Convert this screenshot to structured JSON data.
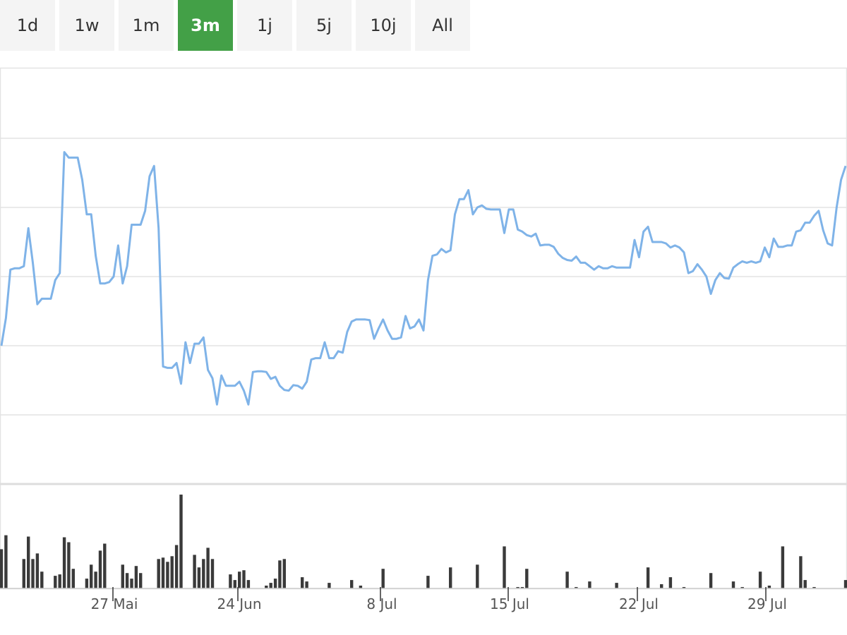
{
  "range_selector": {
    "buttons": [
      {
        "label": "1d",
        "active": false
      },
      {
        "label": "1w",
        "active": false
      },
      {
        "label": "1m",
        "active": false
      },
      {
        "label": "3m",
        "active": true
      },
      {
        "label": "1j",
        "active": false
      },
      {
        "label": "5j",
        "active": false
      },
      {
        "label": "10j",
        "active": false
      },
      {
        "label": "All",
        "active": false
      }
    ]
  },
  "colors": {
    "price_line": "#7fb3e8",
    "volume_bar": "#3a3a3a",
    "active_button": "#43a047",
    "gridline": "#e3e3e3"
  },
  "chart_data": [
    {
      "type": "line",
      "x_ticks": [
        "27 Mai",
        "24 Jun",
        "8 Jul",
        "15 Jul",
        "22 Jul",
        "29 Jul"
      ],
      "gridlines": true,
      "ylim": [
        0,
        6
      ],
      "y": [
        2.0,
        2.4,
        3.1,
        3.12,
        3.12,
        3.15,
        3.7,
        3.2,
        2.6,
        2.68,
        2.68,
        2.68,
        2.95,
        3.05,
        4.8,
        4.72,
        4.72,
        4.72,
        4.4,
        3.9,
        3.9,
        3.3,
        2.9,
        2.9,
        2.92,
        3.0,
        3.45,
        2.9,
        3.15,
        3.75,
        3.75,
        3.75,
        3.95,
        4.45,
        4.6,
        3.7,
        1.7,
        1.68,
        1.68,
        1.75,
        1.45,
        2.05,
        1.75,
        2.03,
        2.03,
        2.12,
        1.65,
        1.53,
        1.15,
        1.57,
        1.42,
        1.42,
        1.42,
        1.48,
        1.35,
        1.15,
        1.62,
        1.63,
        1.63,
        1.62,
        1.52,
        1.55,
        1.42,
        1.36,
        1.35,
        1.43,
        1.42,
        1.38,
        1.48,
        1.8,
        1.82,
        1.82,
        2.05,
        1.82,
        1.82,
        1.92,
        1.9,
        2.2,
        2.35,
        2.38,
        2.38,
        2.38,
        2.37,
        2.1,
        2.25,
        2.38,
        2.22,
        2.1,
        2.1,
        2.12,
        2.43,
        2.25,
        2.28,
        2.38,
        2.22,
        2.95,
        3.3,
        3.32,
        3.4,
        3.35,
        3.38,
        3.9,
        4.12,
        4.12,
        4.25,
        3.9,
        4.0,
        4.03,
        3.98,
        3.97,
        3.97,
        3.97,
        3.63,
        3.97,
        3.97,
        3.68,
        3.65,
        3.6,
        3.58,
        3.62,
        3.45,
        3.46,
        3.46,
        3.43,
        3.33,
        3.27,
        3.24,
        3.23,
        3.29,
        3.2,
        3.2,
        3.15,
        3.1,
        3.15,
        3.12,
        3.12,
        3.15,
        3.13,
        3.13,
        3.13,
        3.13,
        3.53,
        3.28,
        3.65,
        3.72,
        3.5,
        3.5,
        3.5,
        3.48,
        3.42,
        3.45,
        3.42,
        3.35,
        3.05,
        3.08,
        3.18,
        3.1,
        3.0,
        2.75,
        2.95,
        3.05,
        2.98,
        2.97,
        3.13,
        3.18,
        3.22,
        3.2,
        3.22,
        3.2,
        3.22,
        3.42,
        3.28,
        3.55,
        3.43,
        3.43,
        3.45,
        3.45,
        3.65,
        3.67,
        3.78,
        3.78,
        3.88,
        3.95,
        3.67,
        3.48,
        3.45,
        4.0,
        4.4,
        4.6
      ]
    },
    {
      "type": "bar",
      "x_ticks": [
        "27 Mai",
        "24 Jun",
        "8 Jul",
        "15 Jul",
        "22 Jul",
        "29 Jul"
      ],
      "ylim": [
        0,
        135
      ],
      "bars": [
        [
          0,
          56
        ],
        [
          1,
          76
        ],
        [
          5,
          42
        ],
        [
          6,
          74
        ],
        [
          7,
          42
        ],
        [
          8,
          50
        ],
        [
          9,
          24
        ],
        [
          12,
          18
        ],
        [
          13,
          20
        ],
        [
          14,
          73
        ],
        [
          15,
          66
        ],
        [
          16,
          28
        ],
        [
          19,
          14
        ],
        [
          20,
          34
        ],
        [
          21,
          24
        ],
        [
          22,
          54
        ],
        [
          23,
          64
        ],
        [
          27,
          34
        ],
        [
          28,
          22
        ],
        [
          29,
          14
        ],
        [
          30,
          32
        ],
        [
          31,
          22
        ],
        [
          35,
          42
        ],
        [
          36,
          44
        ],
        [
          37,
          38
        ],
        [
          38,
          46
        ],
        [
          39,
          62
        ],
        [
          40,
          134
        ],
        [
          43,
          48
        ],
        [
          44,
          30
        ],
        [
          45,
          42
        ],
        [
          46,
          58
        ],
        [
          47,
          42
        ],
        [
          51,
          20
        ],
        [
          52,
          12
        ],
        [
          53,
          24
        ],
        [
          54,
          26
        ],
        [
          55,
          12
        ],
        [
          59,
          4
        ],
        [
          60,
          8
        ],
        [
          61,
          14
        ],
        [
          62,
          40
        ],
        [
          63,
          42
        ],
        [
          67,
          16
        ],
        [
          68,
          10
        ],
        [
          73,
          8
        ],
        [
          78,
          12
        ],
        [
          80,
          4
        ],
        [
          85,
          28
        ],
        [
          95,
          18
        ],
        [
          100,
          30
        ],
        [
          106,
          34
        ],
        [
          112,
          60
        ],
        [
          115,
          2
        ],
        [
          116,
          2
        ],
        [
          117,
          28
        ],
        [
          126,
          24
        ],
        [
          128,
          2
        ],
        [
          131,
          10
        ],
        [
          137,
          8
        ],
        [
          144,
          30
        ],
        [
          147,
          6
        ],
        [
          149,
          16
        ],
        [
          152,
          2
        ],
        [
          158,
          22
        ],
        [
          163,
          10
        ],
        [
          165,
          2
        ],
        [
          169,
          24
        ],
        [
          171,
          4
        ],
        [
          174,
          60
        ],
        [
          178,
          46
        ],
        [
          179,
          12
        ],
        [
          181,
          2
        ],
        [
          188,
          12
        ],
        [
          194,
          2
        ],
        [
          200,
          18
        ],
        [
          203,
          4
        ],
        [
          204,
          8
        ],
        [
          207,
          34
        ],
        [
          208,
          12
        ]
      ]
    }
  ]
}
